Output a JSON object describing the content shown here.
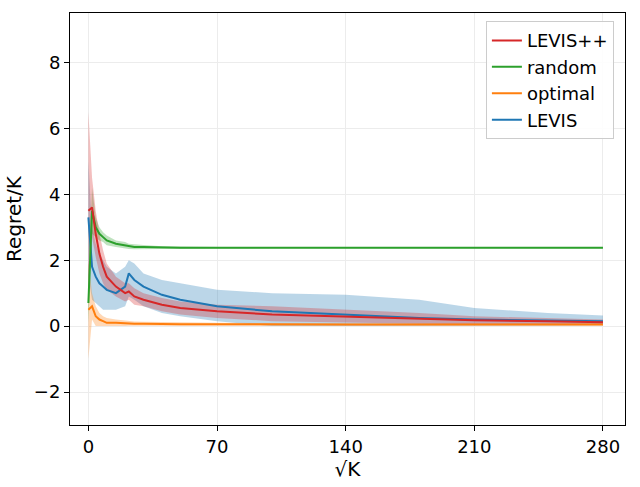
{
  "chart_data": {
    "type": "line",
    "x_label": "√K",
    "y_label": "Regret/K",
    "x": [
      0,
      2,
      4,
      6,
      8,
      10,
      15,
      20,
      22,
      25,
      30,
      40,
      50,
      70,
      100,
      140,
      180,
      210,
      250,
      280
    ],
    "series": [
      {
        "name": "LEVIS",
        "color": "#1f77b4",
        "values": [
          3.3,
          1.8,
          1.5,
          1.3,
          1.2,
          1.1,
          1.0,
          1.2,
          1.6,
          1.4,
          1.2,
          0.95,
          0.8,
          0.6,
          0.45,
          0.35,
          0.25,
          0.2,
          0.18,
          0.15
        ],
        "lower": [
          1.5,
          0.8,
          0.7,
          0.6,
          0.5,
          0.5,
          0.5,
          0.6,
          0.9,
          0.8,
          0.6,
          0.4,
          0.3,
          0.15,
          0.0,
          0.0,
          0.0,
          0.0,
          0.02,
          0.03
        ],
        "upper": [
          5.0,
          3.0,
          2.5,
          2.2,
          2.0,
          1.8,
          1.6,
          1.8,
          2.0,
          1.9,
          1.6,
          1.4,
          1.3,
          1.1,
          1.0,
          0.95,
          0.8,
          0.55,
          0.4,
          0.32
        ]
      },
      {
        "name": "optimal",
        "color": "#ff7f0e",
        "values": [
          0.5,
          0.6,
          0.3,
          0.2,
          0.15,
          0.1,
          0.1,
          0.08,
          0.08,
          0.07,
          0.07,
          0.06,
          0.06,
          0.06,
          0.05,
          0.05,
          0.05,
          0.05,
          0.05,
          0.05
        ],
        "lower": [
          -1.0,
          0.2,
          0.0,
          0.0,
          0.0,
          -0.02,
          0.0,
          0.0,
          0.01,
          0.01,
          0.01,
          0.01,
          0.01,
          0.02,
          0.02,
          0.02,
          0.02,
          0.02,
          0.02,
          0.02
        ],
        "upper": [
          2.0,
          1.0,
          0.6,
          0.4,
          0.3,
          0.25,
          0.2,
          0.16,
          0.15,
          0.14,
          0.13,
          0.12,
          0.11,
          0.1,
          0.09,
          0.08,
          0.08,
          0.08,
          0.08,
          0.08
        ]
      },
      {
        "name": "random",
        "color": "#2ca02c",
        "values": [
          0.7,
          3.5,
          3.0,
          2.8,
          2.7,
          2.6,
          2.5,
          2.45,
          2.42,
          2.4,
          2.4,
          2.38,
          2.38,
          2.38,
          2.38,
          2.38,
          2.38,
          2.38,
          2.38,
          2.38
        ],
        "lower": [
          0.1,
          2.8,
          2.7,
          2.6,
          2.55,
          2.45,
          2.4,
          2.35,
          2.34,
          2.33,
          2.34,
          2.34,
          2.35,
          2.36,
          2.36,
          2.36,
          2.36,
          2.36,
          2.36,
          2.36
        ],
        "upper": [
          1.5,
          4.2,
          3.3,
          3.0,
          2.85,
          2.75,
          2.6,
          2.55,
          2.5,
          2.48,
          2.46,
          2.42,
          2.41,
          2.4,
          2.4,
          2.4,
          2.4,
          2.4,
          2.4,
          2.4
        ]
      },
      {
        "name": "LEVIS++",
        "color": "#d62728",
        "values": [
          3.5,
          3.6,
          2.8,
          2.2,
          1.8,
          1.5,
          1.2,
          1.0,
          1.05,
          0.9,
          0.8,
          0.65,
          0.55,
          0.45,
          0.35,
          0.28,
          0.22,
          0.18,
          0.15,
          0.12
        ],
        "lower": [
          1.0,
          2.7,
          2.1,
          1.6,
          1.3,
          1.1,
          0.9,
          0.75,
          0.8,
          0.65,
          0.6,
          0.45,
          0.35,
          0.25,
          0.15,
          0.1,
          0.07,
          0.06,
          0.05,
          0.05
        ],
        "upper": [
          6.5,
          4.5,
          3.5,
          2.8,
          2.3,
          1.9,
          1.5,
          1.3,
          1.3,
          1.15,
          1.0,
          0.85,
          0.75,
          0.65,
          0.6,
          0.5,
          0.4,
          0.3,
          0.25,
          0.2
        ]
      }
    ],
    "xlim": [
      -10,
      292
    ],
    "xticks": [
      0,
      70,
      140,
      210,
      280
    ],
    "ylim": [
      -3,
      9.5
    ],
    "yticks": [
      -2,
      0,
      2,
      4,
      6,
      8
    ],
    "grid": true,
    "legend": "upper right"
  }
}
